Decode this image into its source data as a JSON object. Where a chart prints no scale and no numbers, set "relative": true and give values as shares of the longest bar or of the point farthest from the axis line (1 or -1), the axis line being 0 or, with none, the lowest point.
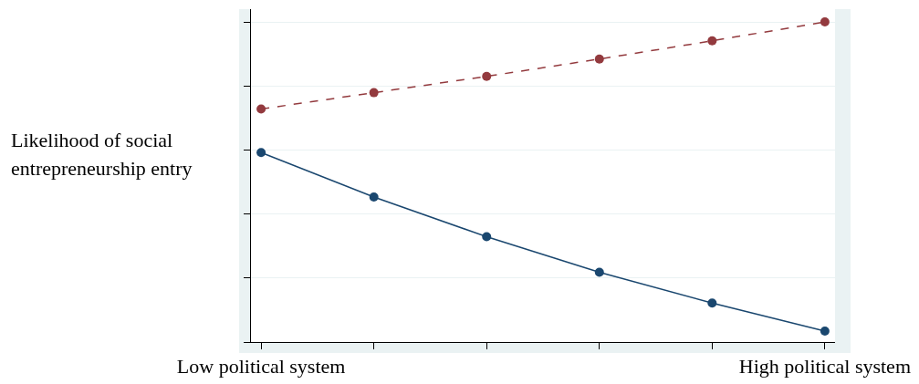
{
  "chart_data": {
    "type": "line",
    "ylabel": "Likelihood of social entrepreneurship entry",
    "categories": [
      "Low political system",
      null,
      null,
      null,
      null,
      "High political system"
    ],
    "relative": true,
    "grid": "y",
    "marker": "circle",
    "series": [
      {
        "color": "#933a3e",
        "line_style": "dashed",
        "values": [
          0.728,
          0.779,
          0.83,
          0.884,
          0.941,
          1.0
        ]
      },
      {
        "color": "#1a476f",
        "line_style": "solid",
        "values": [
          0.592,
          0.453,
          0.329,
          0.218,
          0.122,
          0.034
        ]
      }
    ]
  }
}
